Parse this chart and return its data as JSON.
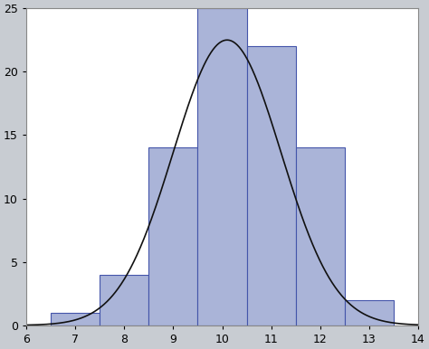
{
  "bar_centers": [
    7,
    8,
    9,
    10,
    11,
    12,
    13
  ],
  "bar_heights": [
    1.0,
    4.0,
    14.0,
    25.0,
    22.0,
    14.0,
    2.0
  ],
  "bar_width": 1.0,
  "bar_color": "#aab4d8",
  "bar_edgecolor": "#4455aa",
  "bar_linewidth": 0.8,
  "curve_color": "#111111",
  "curve_linewidth": 1.2,
  "gaussian_mean": 10.1,
  "gaussian_std": 1.1,
  "gaussian_scale": 22.5,
  "xlim": [
    6,
    14
  ],
  "ylim": [
    0,
    25
  ],
  "xticks": [
    6,
    7,
    8,
    9,
    10,
    11,
    12,
    13,
    14
  ],
  "yticks": [
    0,
    5,
    10,
    15,
    20,
    25
  ],
  "background_color": "#c8ccd2",
  "axes_bg_color": "#ffffff",
  "tick_fontsize": 9,
  "spine_color": "#888888"
}
